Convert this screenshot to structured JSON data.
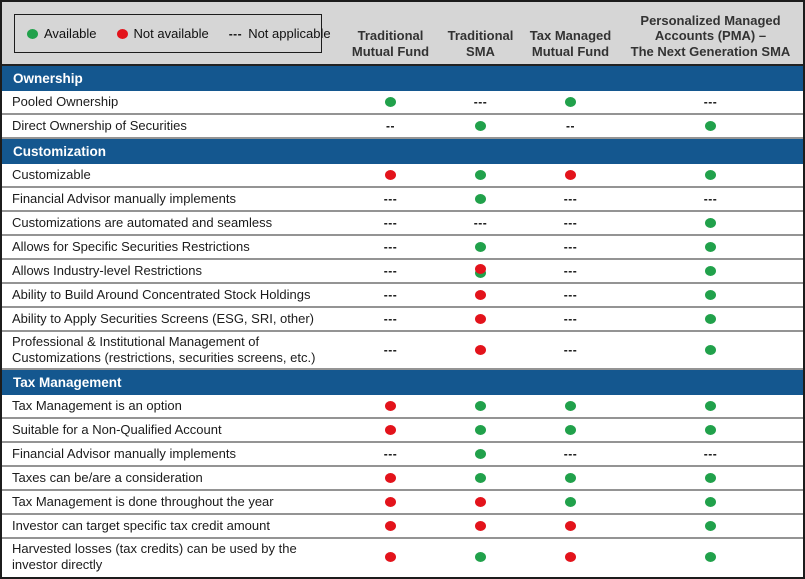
{
  "colors": {
    "band_blue": "#14578f",
    "available_green": "#21a14b",
    "not_available_red": "#e3131b",
    "header_gray": "#d6d6d6",
    "row_separator_gray": "#949494"
  },
  "legend": {
    "items": [
      {
        "marker": "green",
        "label": "Available"
      },
      {
        "marker": "red",
        "label": "Not available"
      },
      {
        "marker": "---",
        "label": "Not applicable"
      }
    ]
  },
  "columns": [
    "Traditional\nMutual Fund",
    "Traditional\nSMA",
    "Tax Managed\nMutual Fund",
    "Personalized Managed\nAccounts (PMA) –\nThe Next Generation SMA"
  ],
  "sections": [
    {
      "title": "Ownership",
      "rows": [
        {
          "label": "Pooled Ownership",
          "values": [
            "green",
            "---",
            "green",
            "---"
          ]
        },
        {
          "label": "Direct Ownership of Securities",
          "values": [
            "--",
            "green",
            "--",
            "green"
          ]
        }
      ]
    },
    {
      "title": "Customization",
      "rows": [
        {
          "label": "Customizable",
          "values": [
            "red",
            "green",
            "red",
            "green"
          ]
        },
        {
          "label": "Financial Advisor manually implements",
          "values": [
            "---",
            "green",
            "---",
            "---"
          ]
        },
        {
          "label": "Customizations are automated and seamless",
          "values": [
            "---",
            "---",
            "---",
            "green"
          ]
        },
        {
          "label": "Allows for Specific Securities Restrictions",
          "values": [
            "---",
            "green",
            "---",
            "green"
          ]
        },
        {
          "label": "Allows Industry-level Restrictions",
          "values": [
            "---",
            "red-green",
            "---",
            "green"
          ]
        },
        {
          "label": "Ability to Build Around Concentrated Stock Holdings",
          "values": [
            "---",
            "red",
            "---",
            "green"
          ]
        },
        {
          "label": "Ability to Apply Securities Screens (ESG, SRI, other)",
          "values": [
            "---",
            "red",
            "---",
            "green"
          ]
        },
        {
          "label": "Professional & Institutional Management of Customizations (restrictions, securities screens, etc.)",
          "values": [
            "---",
            "red",
            "---",
            "green"
          ]
        }
      ]
    },
    {
      "title": "Tax Management",
      "rows": [
        {
          "label": "Tax Management is an option",
          "values": [
            "red",
            "green",
            "green",
            "green"
          ]
        },
        {
          "label": "Suitable for a Non-Qualified Account",
          "values": [
            "red",
            "green",
            "green",
            "green"
          ]
        },
        {
          "label": "Financial Advisor manually implements",
          "values": [
            "---",
            "green",
            "---",
            "---"
          ]
        },
        {
          "label": "Taxes can be/are a consideration",
          "values": [
            "red",
            "green",
            "green",
            "green"
          ]
        },
        {
          "label": "Tax Management is done throughout the year",
          "values": [
            "red",
            "red",
            "green",
            "green"
          ]
        },
        {
          "label": "Investor can target specific tax credit amount",
          "values": [
            "red",
            "red",
            "red",
            "green"
          ]
        },
        {
          "label": "Harvested losses (tax credits) can be used by the investor directly",
          "values": [
            "red",
            "green",
            "red",
            "green"
          ]
        }
      ]
    }
  ]
}
